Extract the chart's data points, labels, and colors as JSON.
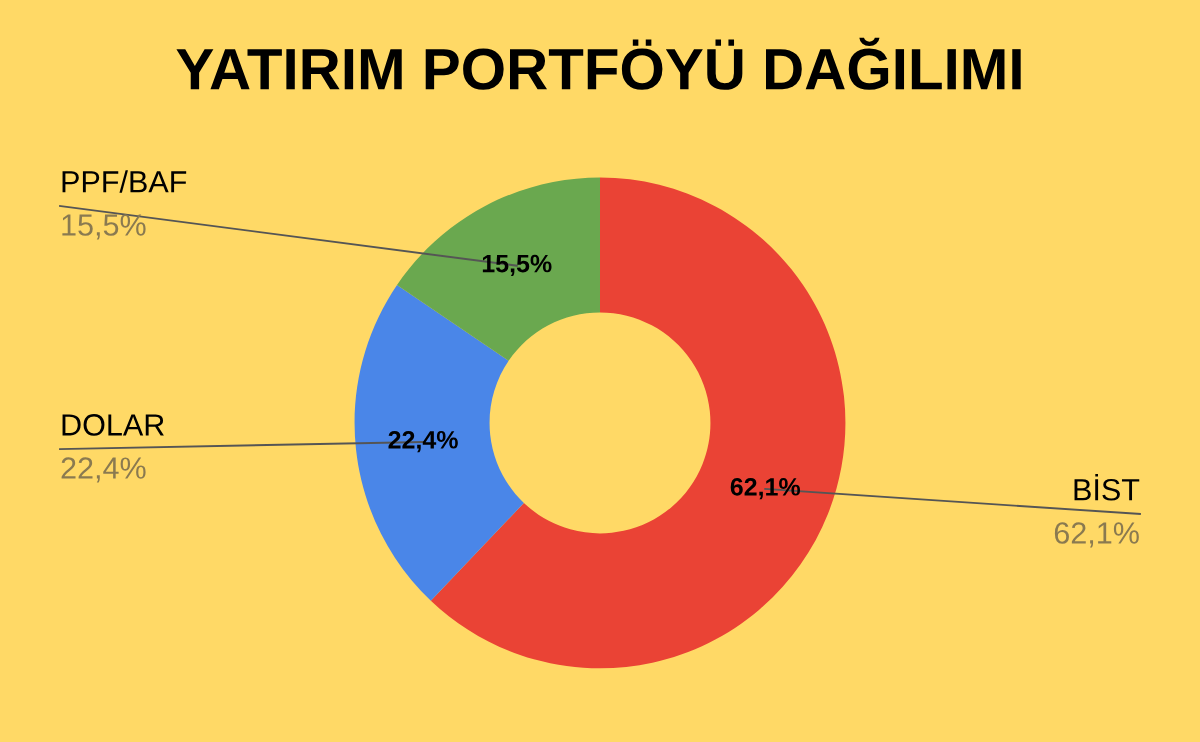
{
  "chart_data": {
    "type": "donut",
    "title": "YATIRIM PORTFÖYÜ DAĞILIMI",
    "categories": [
      "BİST",
      "DOLAR",
      "PPF/BAF"
    ],
    "values": [
      62.1,
      22.4,
      15.5
    ],
    "colors": [
      "#ea4335",
      "#4a86e8",
      "#6aa84f"
    ],
    "value_labels": [
      "62,1%",
      "22,4%",
      "15,5%"
    ],
    "legend": false
  }
}
